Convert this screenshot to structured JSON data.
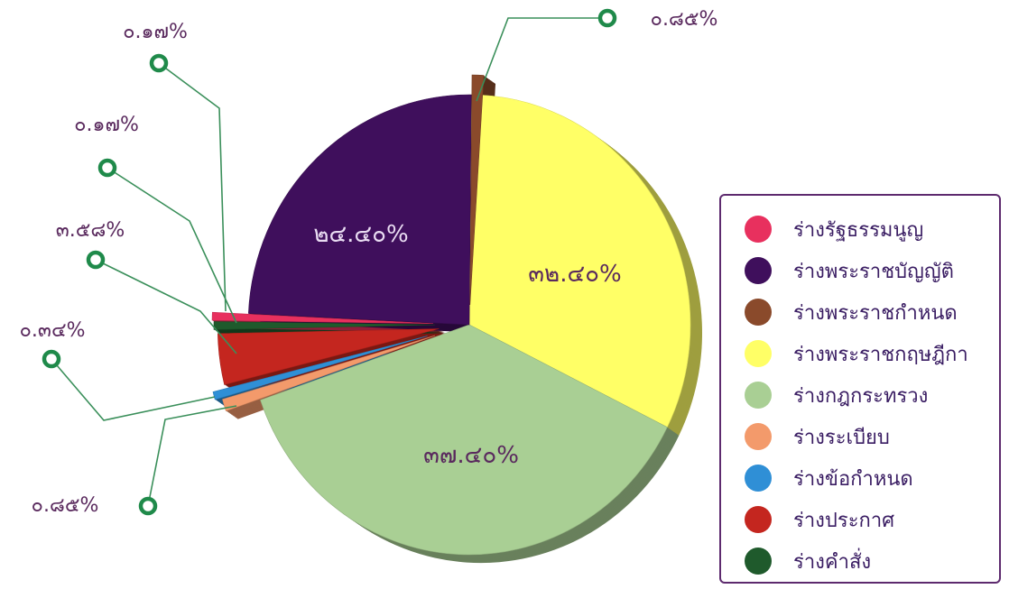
{
  "chart_data": {
    "type": "pie",
    "legend_position": "right",
    "slices": [
      {
        "label": "ร่างรัฐธรรมนูญ",
        "value": 0.17,
        "display": "๐.๑๗%",
        "color": "#e8305e"
      },
      {
        "label": "ร่างพระราชบัญญัติ",
        "value": 24.4,
        "display": "๒๔.๔๐%",
        "color": "#3f0f5c"
      },
      {
        "label": "ร่างพระราชกำหนด",
        "value": 0.85,
        "display": "๐.๘๕%",
        "color": "#8a4a2b"
      },
      {
        "label": "ร่างพระราชกฤษฎีกา",
        "value": 32.4,
        "display": "๓๒.๔๐%",
        "color": "#ffff66"
      },
      {
        "label": "ร่างกฎกระทรวง",
        "value": 37.4,
        "display": "๓๗.๔๐%",
        "color": "#a9cf94"
      },
      {
        "label": "ร่างระเบียบ",
        "value": 0.85,
        "display": "๐.๘๕%",
        "color": "#f39a6b"
      },
      {
        "label": "ร่างข้อกำหนด",
        "value": 0.34,
        "display": "๐.๓๔%",
        "color": "#2f8fd6"
      },
      {
        "label": "ร่างประกาศ",
        "value": 3.58,
        "display": "๓.๕๘%",
        "color": "#c4261f"
      },
      {
        "label": "ร่างคำสั่ง",
        "value": 0.17,
        "display": "๐.๑๗%",
        "color": "#1f5a2c"
      }
    ]
  }
}
